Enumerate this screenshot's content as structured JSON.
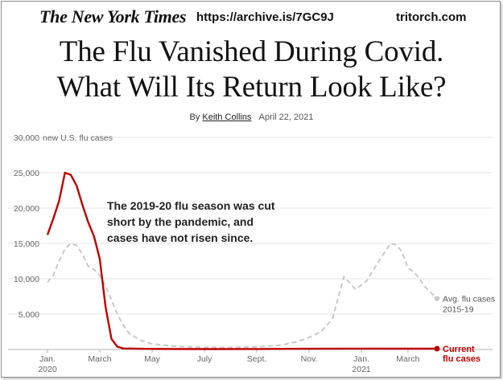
{
  "header": {
    "logo": "The New York Times",
    "url": "https://archive.is/7GC9J",
    "site": "tritorch.com"
  },
  "headline": {
    "line1": "The Flu Vanished During Covid.",
    "line2": "What Will Its Return Look Like?"
  },
  "byline": {
    "prefix": "By",
    "author": "Keith Collins",
    "date": "April 22, 2021"
  },
  "colors": {
    "current": "#c00000",
    "average": "#c8c8c8",
    "grid": "#e6e6e6",
    "axis": "#b0b0b0"
  },
  "chart_data": {
    "type": "line",
    "ylabel": "new U.S. flu cases",
    "ylim": [
      0,
      30000
    ],
    "yticks": [
      5000,
      10000,
      15000,
      20000,
      25000,
      30000
    ],
    "ytick_labels": [
      "5,000",
      "10,000",
      "15,000",
      "20,000",
      "25,000",
      "30,000"
    ],
    "grid": true,
    "x_start": "2020-01-04",
    "x_end": "2021-04-17",
    "xticks": [
      {
        "date": "2020-01-04",
        "label": "Jan.",
        "sub": "2020"
      },
      {
        "date": "2020-03-07",
        "label": "March",
        "sub": ""
      },
      {
        "date": "2020-05-09",
        "label": "May",
        "sub": ""
      },
      {
        "date": "2020-07-11",
        "label": "July",
        "sub": ""
      },
      {
        "date": "2020-09-12",
        "label": "Sept.",
        "sub": ""
      },
      {
        "date": "2020-11-14",
        "label": "Nov.",
        "sub": ""
      },
      {
        "date": "2021-01-16",
        "label": "Jan.",
        "sub": "2021"
      },
      {
        "date": "2021-03-13",
        "label": "March",
        "sub": ""
      }
    ],
    "annotation": [
      "The 2019-20 flu season was cut",
      "short by the pandemic, and",
      "cases have not risen since."
    ],
    "series": [
      {
        "name": "Current flu cases",
        "label_lines": [
          "Current",
          "flu cases"
        ],
        "style": "solid",
        "points": [
          [
            "2020-01-04",
            16200
          ],
          [
            "2020-01-11",
            18500
          ],
          [
            "2020-01-18",
            21000
          ],
          [
            "2020-01-25",
            25000
          ],
          [
            "2020-02-01",
            24700
          ],
          [
            "2020-02-08",
            23200
          ],
          [
            "2020-02-15",
            20500
          ],
          [
            "2020-02-22",
            18000
          ],
          [
            "2020-02-29",
            16000
          ],
          [
            "2020-03-07",
            12800
          ],
          [
            "2020-03-14",
            6000
          ],
          [
            "2020-03-21",
            1500
          ],
          [
            "2020-03-28",
            400
          ],
          [
            "2020-04-04",
            150
          ],
          [
            "2020-05-09",
            80
          ],
          [
            "2020-07-11",
            60
          ],
          [
            "2020-09-12",
            70
          ],
          [
            "2020-11-14",
            100
          ],
          [
            "2021-01-16",
            120
          ],
          [
            "2021-03-13",
            110
          ],
          [
            "2021-04-17",
            110
          ]
        ]
      },
      {
        "name": "Avg. flu cases 2015-19",
        "label_lines": [
          "Avg. flu cases",
          "2015-19"
        ],
        "style": "dashed",
        "points": [
          [
            "2020-01-04",
            9500
          ],
          [
            "2020-01-11",
            10500
          ],
          [
            "2020-01-18",
            12500
          ],
          [
            "2020-01-25",
            14200
          ],
          [
            "2020-02-01",
            15000
          ],
          [
            "2020-02-08",
            14700
          ],
          [
            "2020-02-15",
            13500
          ],
          [
            "2020-02-22",
            11800
          ],
          [
            "2020-02-29",
            11300
          ],
          [
            "2020-03-07",
            10500
          ],
          [
            "2020-03-14",
            9000
          ],
          [
            "2020-03-21",
            7000
          ],
          [
            "2020-03-28",
            5000
          ],
          [
            "2020-04-04",
            3500
          ],
          [
            "2020-04-11",
            2300
          ],
          [
            "2020-04-25",
            1300
          ],
          [
            "2020-05-09",
            800
          ],
          [
            "2020-06-06",
            450
          ],
          [
            "2020-07-11",
            300
          ],
          [
            "2020-08-08",
            280
          ],
          [
            "2020-09-12",
            350
          ],
          [
            "2020-10-10",
            600
          ],
          [
            "2020-10-31",
            1100
          ],
          [
            "2020-11-14",
            1700
          ],
          [
            "2020-11-28",
            2500
          ],
          [
            "2020-12-12",
            4300
          ],
          [
            "2020-12-26",
            10300
          ],
          [
            "2021-01-09",
            8500
          ],
          [
            "2021-01-23",
            9800
          ],
          [
            "2021-02-06",
            12500
          ],
          [
            "2021-02-20",
            15000
          ],
          [
            "2021-02-27",
            14800
          ],
          [
            "2021-03-06",
            13800
          ],
          [
            "2021-03-13",
            11500
          ],
          [
            "2021-03-20",
            11000
          ],
          [
            "2021-03-27",
            10000
          ],
          [
            "2021-04-03",
            8800
          ],
          [
            "2021-04-17",
            7200
          ]
        ]
      }
    ]
  }
}
